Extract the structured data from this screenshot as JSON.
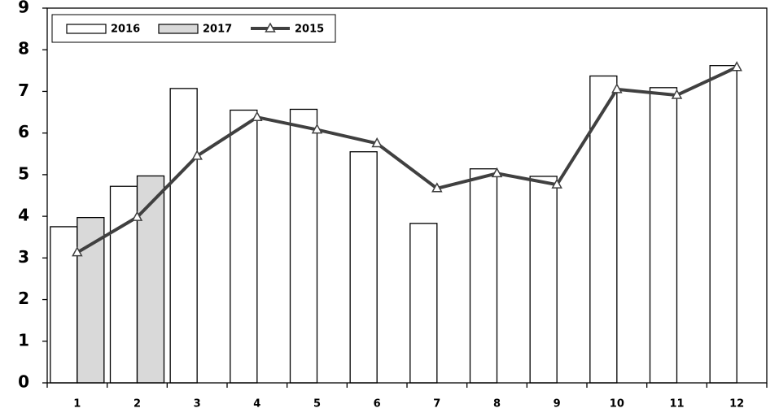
{
  "chart_data": {
    "type": "bar",
    "categories": [
      "1",
      "2",
      "3",
      "4",
      "5",
      "6",
      "7",
      "8",
      "9",
      "10",
      "11",
      "12"
    ],
    "series": [
      {
        "name": "2016",
        "type": "bar",
        "color": "#ffffff",
        "values": [
          3.75,
          4.72,
          7.07,
          6.55,
          6.57,
          5.55,
          3.83,
          5.14,
          4.96,
          7.37,
          7.09,
          7.62
        ]
      },
      {
        "name": "2017",
        "type": "bar",
        "color": "#d9d9d9",
        "values": [
          3.97,
          4.97,
          null,
          null,
          null,
          null,
          null,
          null,
          null,
          null,
          null,
          null
        ]
      },
      {
        "name": "2015",
        "type": "line",
        "color": "#404040",
        "values": [
          3.13,
          3.98,
          5.45,
          6.38,
          6.08,
          5.75,
          4.67,
          5.03,
          4.76,
          7.05,
          6.91,
          7.58
        ]
      }
    ],
    "ylim": [
      0,
      9
    ],
    "yticks": [
      0,
      1,
      2,
      3,
      4,
      5,
      6,
      7,
      8,
      9
    ],
    "grid": false,
    "legend": "top-left"
  }
}
